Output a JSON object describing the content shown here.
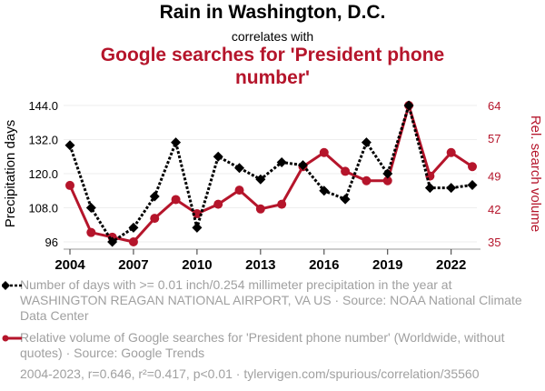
{
  "header": {
    "title": "Rain in Washington, D.C.",
    "subtitle": "correlates with",
    "title2": "Google searches for 'President phone number'"
  },
  "legend": {
    "series1": "Number of days with >= 0.01 inch/0.254 millimeter precipitation in the year at WASHINGTON REAGAN NATIONAL AIRPORT, VA US · Source: NOAA National Climate Data Center",
    "series2": "Relative volume of Google searches for 'President phone number' (Worldwide, without quotes) · Source: Google Trends"
  },
  "footer": "2004-2023, r=0.646, r²=0.417, p<0.01 · tylervigen.com/spurious/correlation/35560",
  "colors": {
    "series1": "#000000",
    "series2": "#b5152b",
    "grid": "#eeeeee",
    "legend_text": "#a0a0a0"
  },
  "chart_data": {
    "type": "line",
    "title": "Rain in Washington, D.C. correlates with Google searches for 'President phone number'",
    "x": [
      2004,
      2005,
      2006,
      2007,
      2008,
      2009,
      2010,
      2011,
      2012,
      2013,
      2014,
      2015,
      2016,
      2017,
      2018,
      2019,
      2020,
      2021,
      2022,
      2023
    ],
    "xticks": [
      "2004",
      "2007",
      "2010",
      "2013",
      "2016",
      "2019",
      "2022"
    ],
    "xlim": [
      2004,
      2023
    ],
    "series": [
      {
        "name": "Precipitation days",
        "axis": "left",
        "style": "dotted",
        "marker": "diamond",
        "values": [
          130,
          108,
          96,
          101,
          112,
          131,
          101,
          126,
          122,
          118,
          124,
          123,
          114,
          111,
          131,
          120,
          144,
          115,
          115,
          116
        ]
      },
      {
        "name": "Rel. search volume",
        "axis": "right",
        "style": "solid",
        "marker": "circle",
        "values": [
          47,
          37,
          36,
          35,
          40,
          44,
          41,
          43,
          46,
          42,
          43,
          51,
          54,
          50,
          48,
          48,
          64,
          49,
          54,
          51
        ]
      }
    ],
    "ylabel_left": "Precipitation days",
    "ylim_left": [
      96,
      144
    ],
    "yticks_left": [
      "144.0",
      "132.0",
      "120.0",
      "108.0",
      "96"
    ],
    "ytick_values_left": [
      144,
      132,
      120,
      108,
      96
    ],
    "ylabel_right": "Rel. search volume",
    "ylim_right": [
      35,
      64
    ],
    "yticks_right": [
      "64",
      "57",
      "49",
      "42",
      "35"
    ],
    "ytick_values_right": [
      64,
      57,
      49,
      42,
      35
    ],
    "grid": true,
    "legend_position": "bottom"
  }
}
